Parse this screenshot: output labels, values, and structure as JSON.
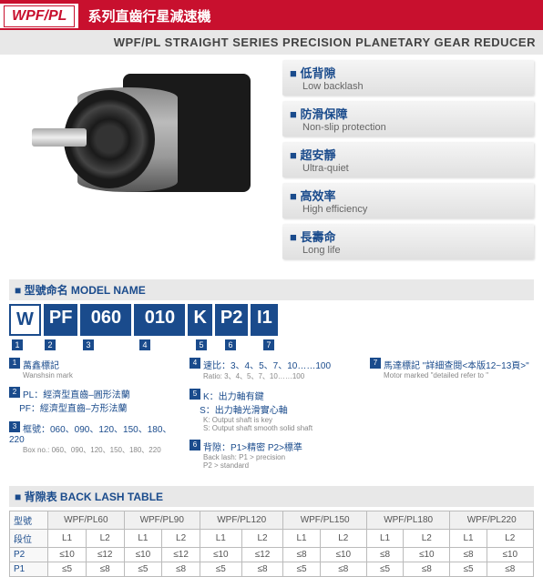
{
  "header": {
    "code": "WPF/PL",
    "title_cn": "系列直齒行星減速機",
    "title_en": "WPF/PL STRAIGHT SERIES PRECISION PLANETARY GEAR REDUCER"
  },
  "features": [
    {
      "cn": "低背隙",
      "en": "Low backlash"
    },
    {
      "cn": "防滑保障",
      "en": "Non-slip protection"
    },
    {
      "cn": "超安靜",
      "en": "Ultra-quiet"
    },
    {
      "cn": "高效率",
      "en": "High efficiency"
    },
    {
      "cn": "長壽命",
      "en": "Long life"
    }
  ],
  "model_section": {
    "header": "型號命名 MODEL NAME",
    "parts": [
      "W",
      "PF",
      "060",
      "010",
      "K",
      "P2",
      "I1"
    ],
    "nums": [
      "1",
      "2",
      "3",
      "4",
      "5",
      "6",
      "7"
    ]
  },
  "legend": {
    "col1": [
      {
        "n": "1",
        "cn": "萬鑫標記",
        "en": "Wanshsin mark"
      },
      {
        "n": "2",
        "cn": "PL：經濟型直齒–圓形法蘭\nPF：經濟型直齒–方形法蘭",
        "en": ""
      },
      {
        "n": "3",
        "cn": "框號：060、090、120、150、180、220",
        "en": "Box no.: 060、090、120、150、180、220"
      }
    ],
    "col2": [
      {
        "n": "4",
        "cn": "速比：3、4、5、7、10……100",
        "en": "Ratio: 3、4、5、7、10……100"
      },
      {
        "n": "5",
        "cn": "K：出力軸有鍵\nS：出力軸光滑實心軸",
        "en": "K: Output shaft is key\nS: Output shaft smooth solid shaft"
      },
      {
        "n": "6",
        "cn": "背隙：P1>精密  P2>標準",
        "en": "Back lash: P1 > precision\nP2 > standard"
      }
    ],
    "col3": [
      {
        "n": "7",
        "cn": "馬達標記 \"詳細查閱<本版12~13頁>\"",
        "en": "Motor marked \"detailed refer to <This edition, pp. 12~13>\""
      }
    ]
  },
  "backlash": {
    "header": "背隙表 BACK LASH TABLE",
    "row_labels": {
      "model": "型號",
      "stage": "段位",
      "p2": "P2",
      "p1": "P1"
    },
    "models": [
      "WPF/PL60",
      "WPF/PL90",
      "WPF/PL120",
      "WPF/PL150",
      "WPF/PL180",
      "WPF/PL220"
    ],
    "stages": [
      "L1",
      "L2",
      "L1",
      "L2",
      "L1",
      "L2",
      "L1",
      "L2",
      "L1",
      "L2",
      "L1",
      "L2"
    ],
    "p2": [
      "≤10",
      "≤12",
      "≤10",
      "≤12",
      "≤10",
      "≤12",
      "≤8",
      "≤10",
      "≤8",
      "≤10",
      "≤8",
      "≤10"
    ],
    "p1": [
      "≤5",
      "≤8",
      "≤5",
      "≤8",
      "≤5",
      "≤8",
      "≤5",
      "≤8",
      "≤5",
      "≤8",
      "≤5",
      "≤8"
    ]
  }
}
